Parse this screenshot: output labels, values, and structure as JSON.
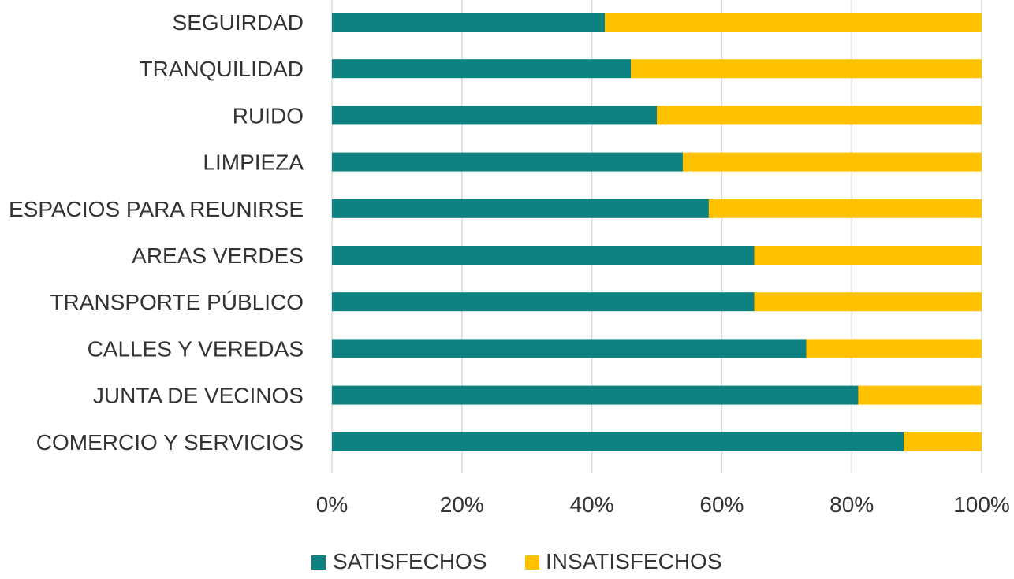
{
  "chart_data": {
    "type": "bar",
    "orientation": "horizontal",
    "stacking": "percent",
    "categories": [
      "SEGUIRDAD",
      "TRANQUILIDAD",
      "RUIDO",
      "LIMPIEZA",
      "ESPACIOS PARA REUNIRSE",
      "AREAS VERDES",
      "TRANSPORTE PÚBLICO",
      "CALLES Y VEREDAS",
      "JUNTA DE VECINOS",
      "COMERCIO Y SERVICIOS"
    ],
    "series": [
      {
        "name": "SATISFECHOS",
        "color": "#0E8181",
        "values": [
          42,
          46,
          50,
          54,
          58,
          65,
          65,
          73,
          81,
          88
        ]
      },
      {
        "name": "INSATISFECHOS",
        "color": "#FFC000",
        "values": [
          58,
          54,
          50,
          46,
          42,
          35,
          35,
          27,
          19,
          12
        ]
      }
    ],
    "xlim": [
      0,
      100
    ],
    "x_ticks": [
      "0%",
      "20%",
      "40%",
      "60%",
      "80%",
      "100%"
    ],
    "x_tick_values": [
      0,
      20,
      40,
      60,
      80,
      100
    ],
    "grid": true,
    "gridline_color": "#D9D9D9",
    "legend_position": "bottom",
    "title": "",
    "xlabel": "",
    "ylabel": ""
  }
}
